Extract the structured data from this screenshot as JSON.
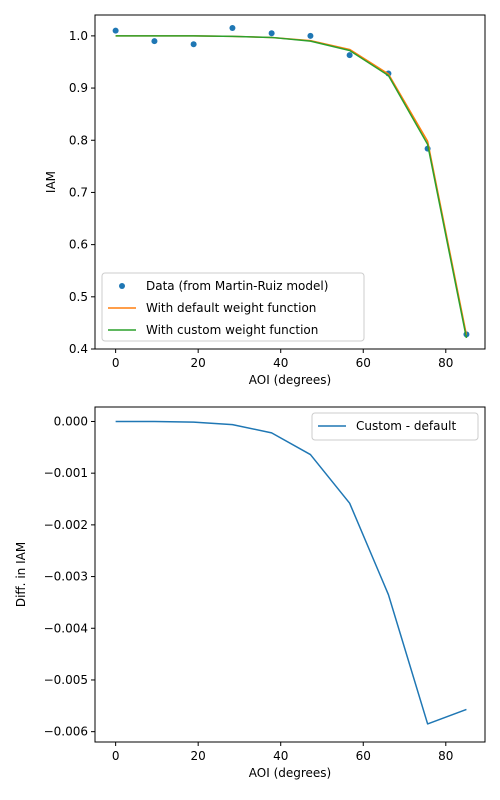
{
  "colors": {
    "blue": "#1f77b4",
    "orange": "#ff7f0e",
    "green": "#2ca02c",
    "axes": "#000000",
    "legend_border": "#cccccc"
  },
  "chart_data": [
    {
      "type": "line",
      "title": "",
      "xlabel": "AOI (degrees)",
      "ylabel": "IAM",
      "xlim": [
        -5,
        89.5
      ],
      "ylim": [
        0.4,
        1.04
      ],
      "grid": false,
      "legend_position": "lower-left",
      "xticks": [
        0,
        20,
        40,
        60,
        80
      ],
      "yticks": [
        0.4,
        0.5,
        0.6,
        0.7,
        0.8,
        0.9,
        1.0
      ],
      "ytick_labels": [
        "0.4",
        "0.5",
        "0.6",
        "0.7",
        "0.8",
        "0.9",
        "1.0"
      ],
      "series": [
        {
          "name": "Data (from Martin-Ruiz model)",
          "style": "markers",
          "color": "#1f77b4",
          "x": [
            0,
            9.4,
            18.9,
            28.3,
            37.8,
            47.2,
            56.7,
            66.1,
            75.6,
            85.0
          ],
          "y": [
            1.01,
            0.99,
            0.984,
            1.015,
            1.005,
            1.0,
            0.963,
            0.928,
            0.784,
            0.428
          ]
        },
        {
          "name": "With default weight function",
          "style": "line",
          "color": "#ff7f0e",
          "x": [
            0,
            9.4,
            18.9,
            28.3,
            37.8,
            47.2,
            56.7,
            66.1,
            75.6,
            85.0
          ],
          "y": [
            1.0,
            1.0,
            0.9999,
            0.999,
            0.997,
            0.991,
            0.974,
            0.927,
            0.798,
            0.427
          ]
        },
        {
          "name": "With custom weight function",
          "style": "line",
          "color": "#2ca02c",
          "x": [
            0,
            9.4,
            18.9,
            28.3,
            37.8,
            47.2,
            56.7,
            66.1,
            75.6,
            85.0
          ],
          "y": [
            1.0,
            1.0,
            0.9999,
            0.999,
            0.997,
            0.99,
            0.972,
            0.924,
            0.792,
            0.421
          ]
        }
      ]
    },
    {
      "type": "line",
      "title": "",
      "xlabel": "AOI (degrees)",
      "ylabel": "Diff. in IAM",
      "xlim": [
        -5,
        89.5
      ],
      "ylim": [
        -0.0062,
        0.00028
      ],
      "grid": false,
      "legend_position": "upper-right",
      "xticks": [
        0,
        20,
        40,
        60,
        80
      ],
      "yticks": [
        -0.006,
        -0.005,
        -0.004,
        -0.003,
        -0.002,
        -0.001,
        0.0
      ],
      "ytick_labels": [
        "−0.006",
        "−0.005",
        "−0.004",
        "−0.003",
        "−0.002",
        "−0.001",
        "0.000"
      ],
      "series": [
        {
          "name": "Custom - default",
          "style": "line",
          "color": "#1f77b4",
          "x": [
            0,
            9.4,
            18.9,
            28.3,
            37.8,
            47.2,
            56.7,
            66.1,
            75.6,
            85.0
          ],
          "y": [
            0.0,
            -1e-06,
            -1.2e-05,
            -6e-05,
            -0.00022,
            -0.00064,
            -0.00158,
            -0.00335,
            -0.00585,
            -0.00557
          ]
        }
      ]
    }
  ]
}
